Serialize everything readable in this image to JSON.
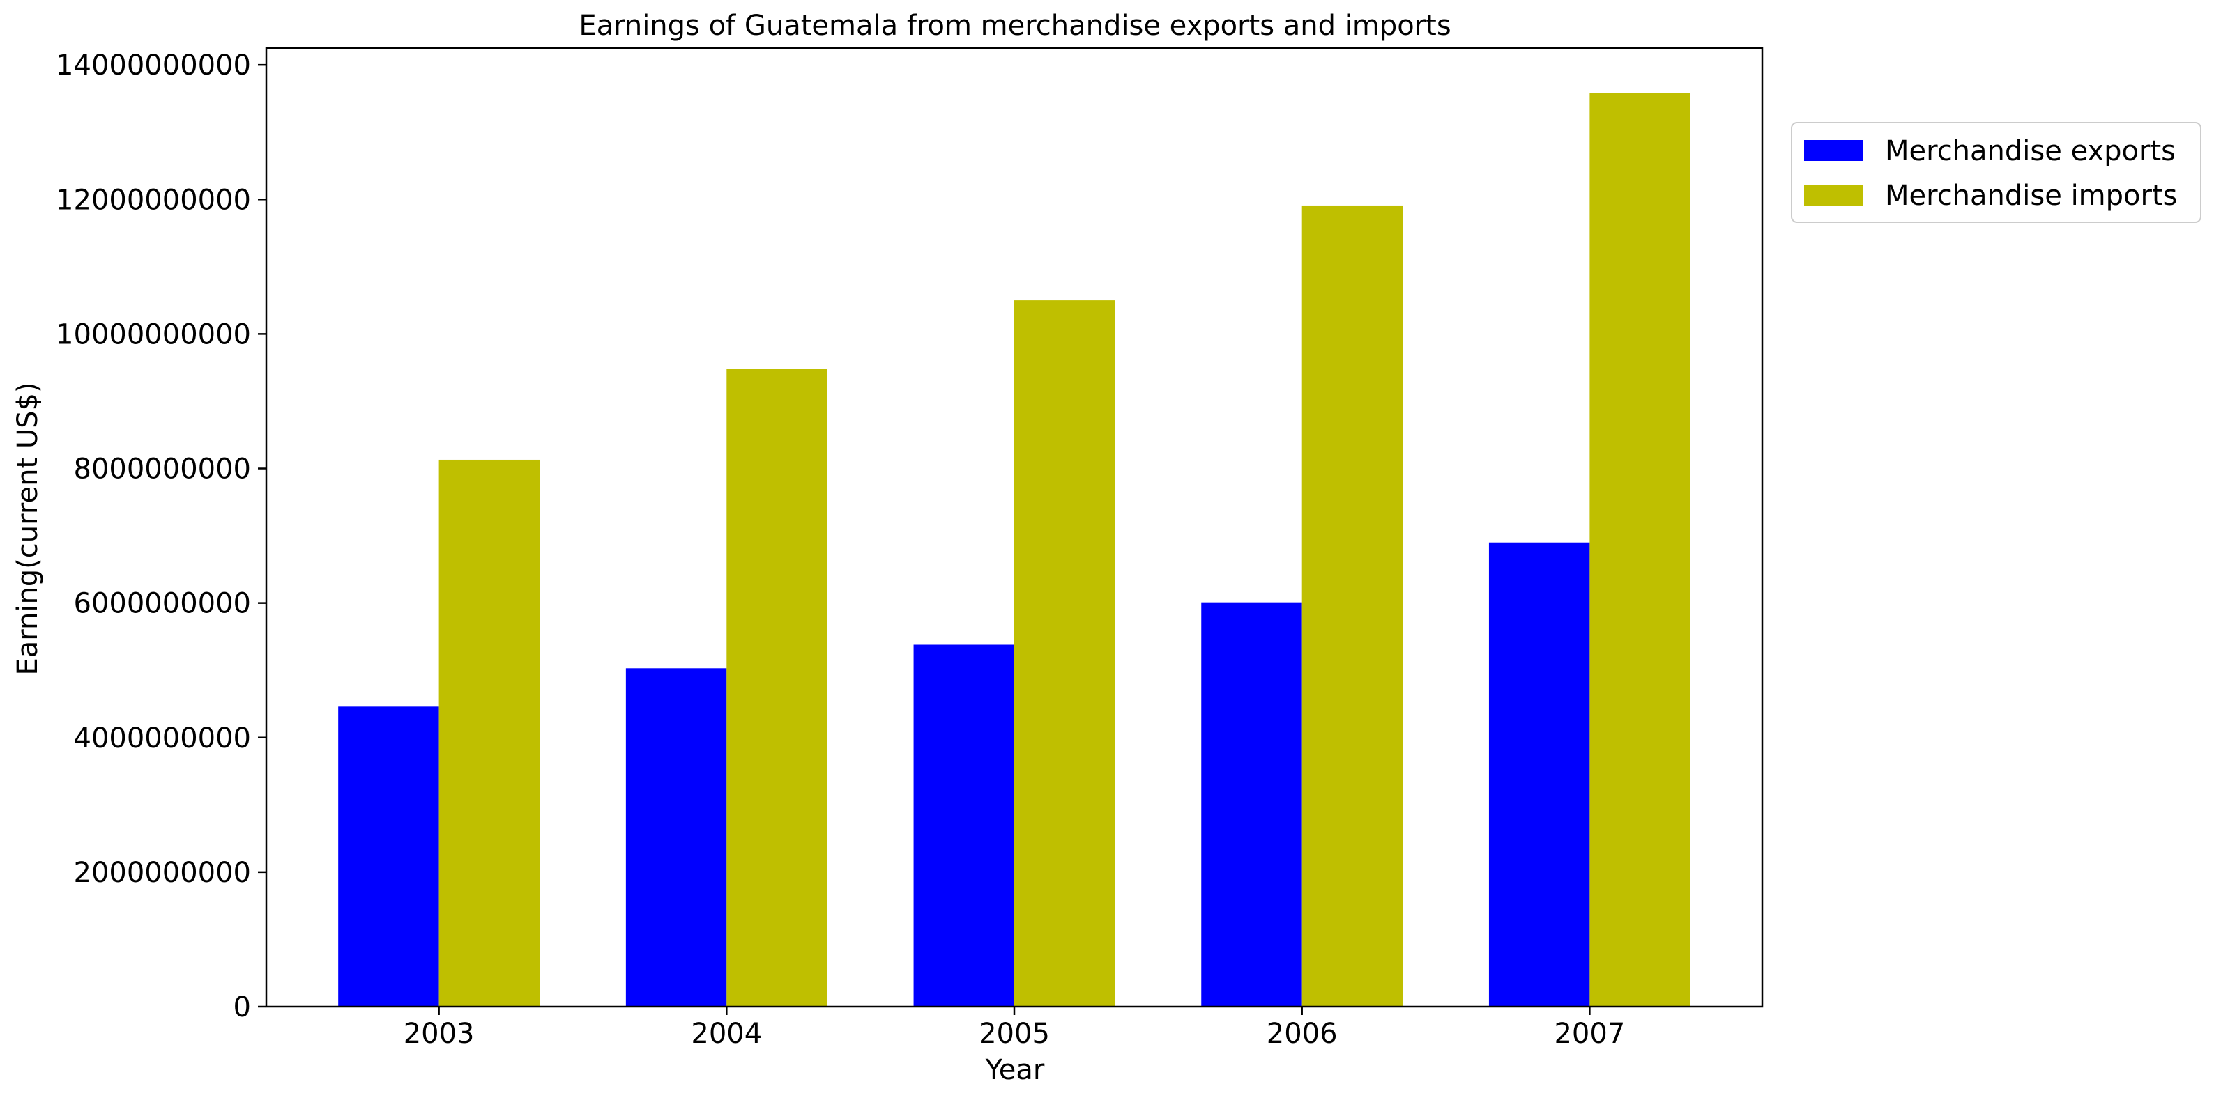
{
  "chart_data": {
    "type": "bar",
    "title": "Earnings of Guatemala from merchandise exports and imports",
    "xlabel": "Year",
    "ylabel": "Earning(current US$)",
    "categories": [
      "2003",
      "2004",
      "2005",
      "2006",
      "2007"
    ],
    "series": [
      {
        "name": "Merchandise exports",
        "color": "#0000ff",
        "values": [
          4460000000,
          5030000000,
          5380000000,
          6010000000,
          6900000000
        ]
      },
      {
        "name": "Merchandise imports",
        "color": "#bfbf00",
        "values": [
          8130000000,
          9480000000,
          10500000000,
          11910000000,
          13580000000
        ]
      }
    ],
    "ylim": [
      0,
      14250000000
    ],
    "yticks": [
      0,
      2000000000,
      4000000000,
      6000000000,
      8000000000,
      10000000000,
      12000000000,
      14000000000
    ],
    "ytick_labels": [
      "0",
      "2000000000",
      "4000000000",
      "6000000000",
      "8000000000",
      "10000000000",
      "12000000000",
      "14000000000"
    ],
    "grid": false,
    "legend_position": "outside-top-right"
  }
}
